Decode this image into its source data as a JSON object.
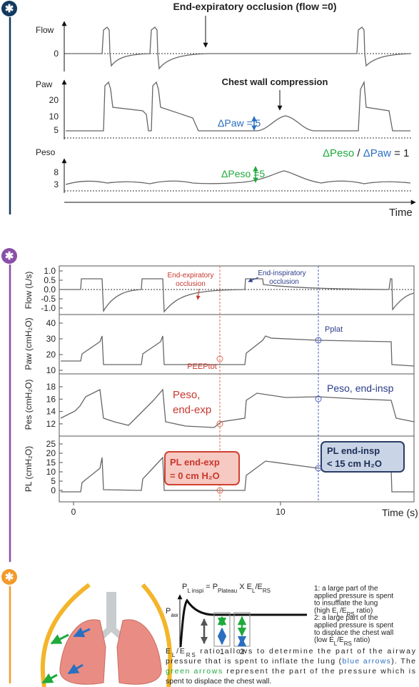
{
  "panel1": {
    "title": "End-expiratory occlusion (flow =0)",
    "flow": {
      "label": "Flow",
      "ticks": [
        "0"
      ]
    },
    "paw": {
      "label": "Paw",
      "ticks": [
        "20",
        "10",
        "5"
      ]
    },
    "peso": {
      "label": "Peso",
      "ticks": [
        "8",
        "3"
      ]
    },
    "compression": "Chest wall compression",
    "delta_paw": "ΔPaw = 5",
    "delta_peso": "ΔPeso =5",
    "ratio": [
      "ΔPeso",
      " / ",
      "ΔPaw",
      " = 1"
    ],
    "x_label": "Time"
  },
  "panel2": {
    "flow": {
      "label": "Flow (L/s)",
      "ticks": [
        "1.0",
        "0.5",
        "0.0",
        "-0.5",
        "-1.0"
      ]
    },
    "paw": {
      "label": "Paw (cmH₂O)",
      "ticks": [
        "40",
        "30",
        "20",
        "10"
      ]
    },
    "pes": {
      "label": "Pes (cmH₂O)",
      "ticks": [
        "18",
        "16",
        "14",
        "12"
      ]
    },
    "pl": {
      "label": "PL (cmH₂O)",
      "ticks": [
        "25",
        "20",
        "15",
        "10",
        "5",
        "0"
      ]
    },
    "x_ticks": [
      "0",
      "10"
    ],
    "x_label": "Time (s)",
    "annotations": {
      "end_exp": [
        "End-expiratory",
        "occlusion"
      ],
      "end_insp": [
        "End-inspiratory",
        "occlusion"
      ],
      "peeptot": "PEEPtot",
      "pplat": "Pplat",
      "peso_exp": [
        "Peso,",
        "end-exp"
      ],
      "peso_insp": "Peso, end-insp",
      "pl_exp": [
        "PL end-exp",
        "= 0 cm H₂O"
      ],
      "pl_insp": [
        "PL end-insp",
        "< 15 cm H₂O"
      ]
    }
  },
  "panel3": {
    "formula": [
      "P",
      "L inspi",
      " = P",
      "Plateau",
      " X E",
      "L",
      "/E",
      "RS"
    ],
    "y_label": [
      "P",
      "aw"
    ],
    "box_labels": [
      "1",
      "2"
    ],
    "notes": [
      [
        "1: a large part of the"
      ],
      [
        "applied pressure is spent"
      ],
      [
        "to insufflate the lung"
      ],
      [
        "(high E",
        "L",
        "/E",
        "RS",
        " ratio)"
      ],
      [
        "2: a large part of the"
      ],
      [
        "applied pressure is spent"
      ],
      [
        "to displace the chest wall"
      ],
      [
        "(low E",
        "L",
        "/E",
        "RS",
        " ratio)"
      ]
    ],
    "caption": [
      [
        "E",
        "L",
        "/E",
        "RS",
        " ratio allows to determine the part of the airway"
      ],
      [
        "pressure that is spent to inflate the lung (",
        "blue arrows",
        "). The"
      ],
      [
        "green arrows",
        " represent the part of the pressure which is"
      ],
      [
        "spent to displace the chest wall."
      ]
    ]
  }
}
